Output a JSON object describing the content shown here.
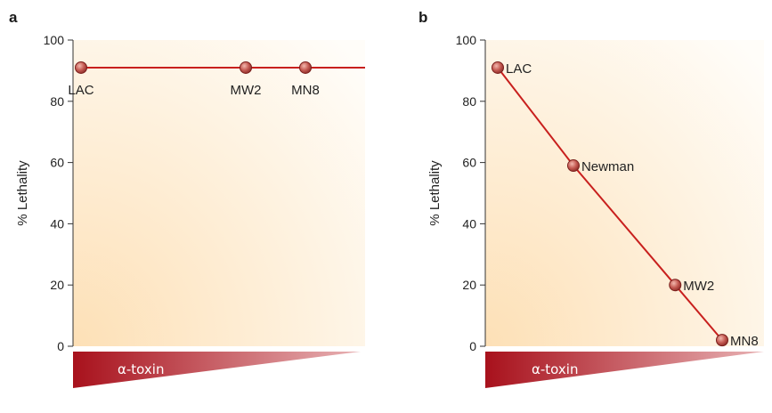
{
  "chart_data": [
    {
      "panel": "a",
      "type": "line",
      "ylabel": "% Lethality",
      "ylim": [
        0,
        100
      ],
      "yticks": [
        0,
        20,
        40,
        60,
        80,
        100
      ],
      "xlabel": "α-toxin",
      "points": [
        {
          "label": "LAC",
          "x": 0.0,
          "y": 91
        },
        {
          "label": "MW2",
          "x": 0.58,
          "y": 91
        },
        {
          "label": "MN8",
          "x": 0.79,
          "y": 91
        }
      ],
      "line_extends_to_x": 1.0
    },
    {
      "panel": "b",
      "type": "line",
      "ylabel": "% Lethality",
      "ylim": [
        0,
        100
      ],
      "yticks": [
        0,
        20,
        40,
        60,
        80,
        100
      ],
      "xlabel": "α-toxin",
      "points": [
        {
          "label": "LAC",
          "x": 0.0,
          "y": 91
        },
        {
          "label": "Newman",
          "x": 0.29,
          "y": 59
        },
        {
          "label": "MW2",
          "x": 0.68,
          "y": 20
        },
        {
          "label": "MN8",
          "x": 0.86,
          "y": 2
        }
      ]
    }
  ],
  "colors": {
    "line": "#c8201e",
    "marker": "#b3403a",
    "wedge_dark": "#a8111c",
    "wedge_light": "#d98a8d",
    "plot_bg": "#fde3bc"
  }
}
